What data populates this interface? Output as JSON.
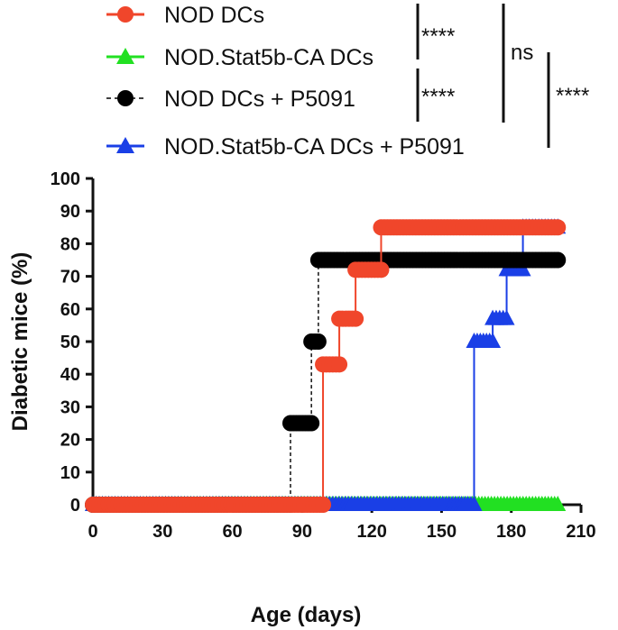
{
  "chart_data": {
    "type": "line",
    "title": "",
    "xlabel": "Age (days)",
    "ylabel": "Diabetic mice (%)",
    "xlim": [
      0,
      210
    ],
    "ylim": [
      0,
      100
    ],
    "xticks": [
      "0",
      "30",
      "60",
      "90",
      "120",
      "150",
      "180",
      "210"
    ],
    "yticks": [
      "0",
      "10",
      "20",
      "30",
      "40",
      "50",
      "60",
      "70",
      "80",
      "90",
      "100"
    ],
    "series": [
      {
        "name": "NOD DCs",
        "color": "#f0462b",
        "marker": "circle",
        "line_style": "solid",
        "steps": [
          [
            0,
            0
          ],
          [
            99,
            43
          ],
          [
            106,
            57
          ],
          [
            113,
            72
          ],
          [
            124,
            85
          ],
          [
            200,
            85
          ]
        ]
      },
      {
        "name": "NOD.Stat5b-CA DCs",
        "color": "#22e022",
        "marker": "triangle",
        "line_style": "solid",
        "steps": [
          [
            0,
            0
          ],
          [
            200,
            0
          ]
        ]
      },
      {
        "name": "NOD DCs + P5091",
        "color": "#000000",
        "marker": "circle",
        "line_style": "dashed",
        "steps": [
          [
            0,
            0
          ],
          [
            85,
            25
          ],
          [
            94,
            50
          ],
          [
            97,
            75
          ],
          [
            200,
            75
          ]
        ]
      },
      {
        "name": "NOD.Stat5b-CA DCs + P5091",
        "color": "#1a3fe6",
        "marker": "triangle",
        "line_style": "solid",
        "steps": [
          [
            0,
            0
          ],
          [
            164,
            50
          ],
          [
            172,
            57
          ],
          [
            178,
            72
          ],
          [
            185,
            85
          ],
          [
            200,
            85
          ]
        ]
      }
    ],
    "significance": [
      {
        "label": "****",
        "between": [
          "NOD DCs",
          "NOD.Stat5b-CA DCs"
        ]
      },
      {
        "label": "****",
        "between": [
          "NOD DCs + P5091",
          "NOD.Stat5b-CA DCs + P5091"
        ]
      },
      {
        "label": "ns",
        "between": [
          "NOD DCs",
          "NOD DCs + P5091"
        ]
      },
      {
        "label": "****",
        "between": [
          "NOD.Stat5b-CA DCs",
          "NOD.Stat5b-CA DCs + P5091"
        ]
      }
    ]
  }
}
